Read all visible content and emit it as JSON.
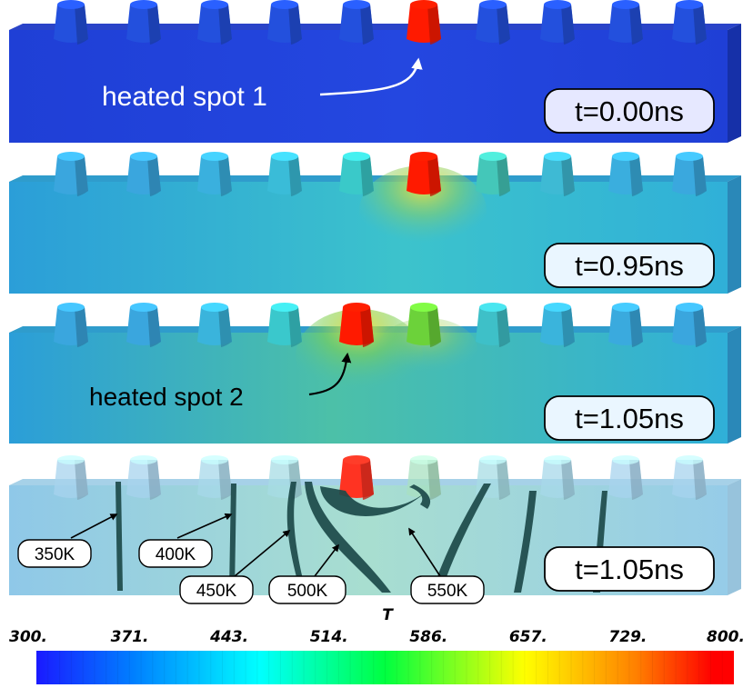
{
  "panels": [
    {
      "time_label": "t=0.00ns",
      "annotation": "heated spot 1",
      "background": [
        "#1f3fd6",
        "#2447e0",
        "#1f3fd6"
      ],
      "pillar_colors": [
        "#2350dd",
        "#2350dd",
        "#2350dd",
        "#2350dd",
        "#2350dd",
        "#ff1a00",
        "#2350dd",
        "#2350dd",
        "#2350dd",
        "#2350dd"
      ]
    },
    {
      "time_label": "t=0.95ns",
      "annotation": "",
      "background": [
        "#2b9ed8",
        "#3cc3cc",
        "#30b0d8"
      ],
      "pillar_colors": [
        "#3aa6de",
        "#3aa6de",
        "#3ab0de",
        "#3abcd8",
        "#3ac9c9",
        "#ff1a00",
        "#44c7b9",
        "#3ebad4",
        "#3aaede",
        "#3aa8de"
      ]
    },
    {
      "time_label": "t=1.05ns",
      "annotation": "heated spot 2",
      "background": [
        "#2b9ed8",
        "#5ec48a",
        "#30b0d8"
      ],
      "pillar_colors": [
        "#3aa6de",
        "#3aa6de",
        "#3ab4dc",
        "#3ac8cc",
        "#ff1a00",
        "#6cd23a",
        "#3ec0c8",
        "#3ab4dc",
        "#3aaade",
        "#3aa6de"
      ]
    },
    {
      "time_label": "t=1.05ns",
      "annotation": "",
      "background": [
        "#8fc8e8",
        "#a8ded0",
        "#96cce8"
      ],
      "pillar_colors": [
        "#a7d3ee",
        "#a7d3ee",
        "#a7d8ea",
        "#a7dce4",
        "#ff3322",
        "#a8e0c0",
        "#a7dce4",
        "#a7d8ea",
        "#a7d3ee",
        "#a7d3ee"
      ]
    }
  ],
  "isotherms": [
    "350K",
    "400K",
    "450K",
    "500K",
    "550K"
  ],
  "colorbar": {
    "title": "T",
    "ticks": [
      "300.",
      "371.",
      "443.",
      "514.",
      "586.",
      "657.",
      "729.",
      "800."
    ],
    "range": [
      300,
      800
    ],
    "colors": [
      "#1a1aff",
      "#0080ff",
      "#00ffff",
      "#00ff40",
      "#ffff00",
      "#ff8000",
      "#ff0000"
    ]
  }
}
